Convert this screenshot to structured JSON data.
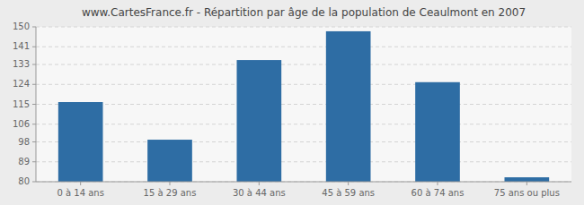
{
  "chart_data": {
    "type": "bar",
    "title": "www.CartesFrance.fr - Répartition par âge de la population de Ceaulmont en 2007",
    "categories": [
      "0 à 14 ans",
      "15 à 29 ans",
      "30 à 44 ans",
      "45 à 59 ans",
      "60 à 74 ans",
      "75 ans ou plus"
    ],
    "values": [
      116,
      99,
      135,
      148,
      125,
      82
    ],
    "color": "#2E6DA4",
    "ylim": [
      80,
      150
    ],
    "yticks": [
      80,
      89,
      98,
      106,
      115,
      124,
      133,
      141,
      150
    ],
    "grid": true
  }
}
